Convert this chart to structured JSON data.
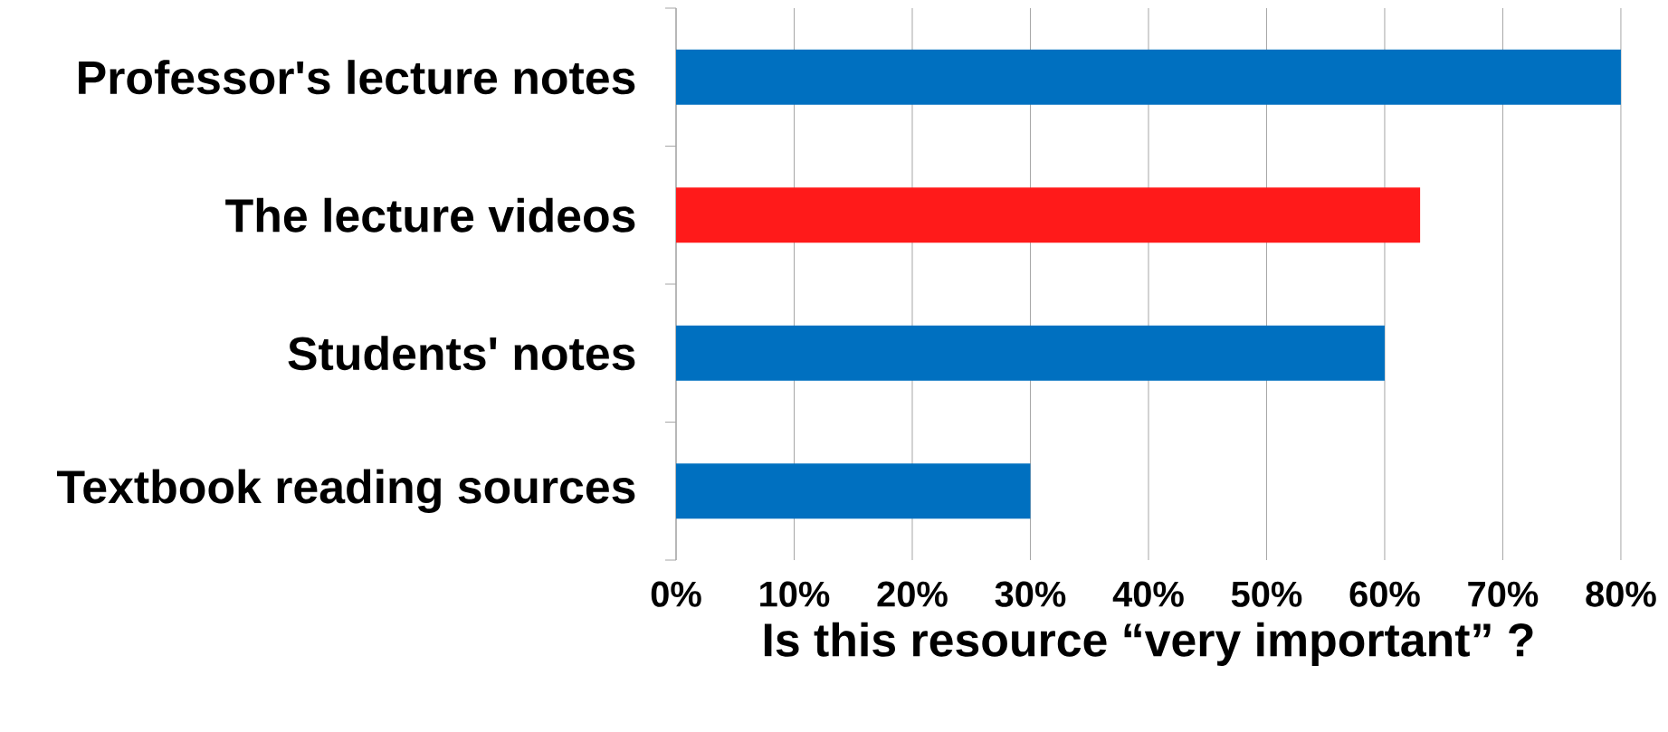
{
  "chart_data": {
    "type": "bar",
    "orientation": "horizontal",
    "categories": [
      "Professor's lecture notes",
      "The lecture videos",
      "Students' notes",
      "Textbook reading sources"
    ],
    "values": [
      80,
      63,
      60,
      30
    ],
    "colors": [
      "#0070c0",
      "#ff1a1a",
      "#0070c0",
      "#0070c0"
    ],
    "xlabel": "Is this resource “very important” ?",
    "xlim": [
      0,
      80
    ],
    "xticks": [
      {
        "value": 0,
        "label": "0%"
      },
      {
        "value": 10,
        "label": "10%"
      },
      {
        "value": 20,
        "label": "20%"
      },
      {
        "value": 30,
        "label": "30%"
      },
      {
        "value": 40,
        "label": "40%"
      },
      {
        "value": 50,
        "label": "50%"
      },
      {
        "value": 60,
        "label": "60%"
      },
      {
        "value": 70,
        "label": "70%"
      },
      {
        "value": 80,
        "label": "80%"
      }
    ],
    "grid": "x"
  }
}
